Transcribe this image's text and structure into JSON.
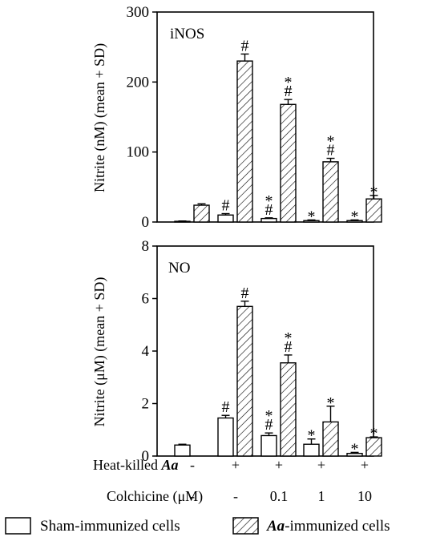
{
  "chart_data": [
    {
      "type": "bar",
      "panel_label": "iNOS",
      "ylabel": "Nitrite (nM) (mean + SD)",
      "ylim": [
        0,
        300
      ],
      "yticks": [
        0,
        100,
        200,
        300
      ],
      "series": [
        {
          "name": "Sham-immunized cells",
          "fill": "open",
          "values": [
            1,
            10,
            5,
            2,
            2
          ],
          "errors": [
            0.5,
            2,
            1,
            1,
            1
          ],
          "marks": [
            [],
            [
              "#"
            ],
            [
              "*",
              "#"
            ],
            [
              "*"
            ],
            [
              "*"
            ]
          ]
        },
        {
          "name": "Aa-immunized cells",
          "fill": "hatched",
          "values": [
            24,
            230,
            168,
            86,
            33
          ],
          "errors": [
            2,
            10,
            7,
            5,
            5
          ],
          "marks": [
            [],
            [
              "#"
            ],
            [
              "*",
              "#"
            ],
            [
              "*",
              "#"
            ],
            [
              "*"
            ]
          ]
        }
      ]
    },
    {
      "type": "bar",
      "panel_label": "NO",
      "ylabel": "Nitrite (μM) (mean + SD)",
      "ylim": [
        0,
        8
      ],
      "yticks": [
        0,
        2,
        4,
        6,
        8
      ],
      "series": [
        {
          "name": "Sham-immunized cells",
          "fill": "open",
          "values": [
            0.42,
            1.45,
            0.78,
            0.45,
            0.1
          ],
          "errors": [
            0.03,
            0.1,
            0.1,
            0.2,
            0.04
          ],
          "marks": [
            [],
            [
              "#"
            ],
            [
              "*",
              "#"
            ],
            [
              "*"
            ],
            [
              "*"
            ]
          ]
        },
        {
          "name": "Aa-immunized cells",
          "fill": "hatched",
          "values": [
            0,
            5.7,
            3.55,
            1.3,
            0.7
          ],
          "errors": [
            0,
            0.2,
            0.3,
            0.6,
            0.03
          ],
          "marks": [
            [],
            [
              "#"
            ],
            [
              "*",
              "#"
            ],
            [
              "*"
            ],
            [
              "*"
            ]
          ]
        }
      ]
    }
  ],
  "conditions": {
    "heat_killed_label": "Heat-killed ",
    "heat_killed_italic": "Aa",
    "heat_killed": [
      "-",
      "+",
      "+",
      "+",
      "+"
    ],
    "colchicine_label": "Colchicine (μM)",
    "colchicine": [
      "-",
      "-",
      "0.1",
      "1",
      "10"
    ]
  },
  "legend": [
    {
      "text": "Sham-immunized cells",
      "italic_prefix": ""
    },
    {
      "text": "-immunized cells",
      "italic_prefix": "Aa"
    }
  ]
}
